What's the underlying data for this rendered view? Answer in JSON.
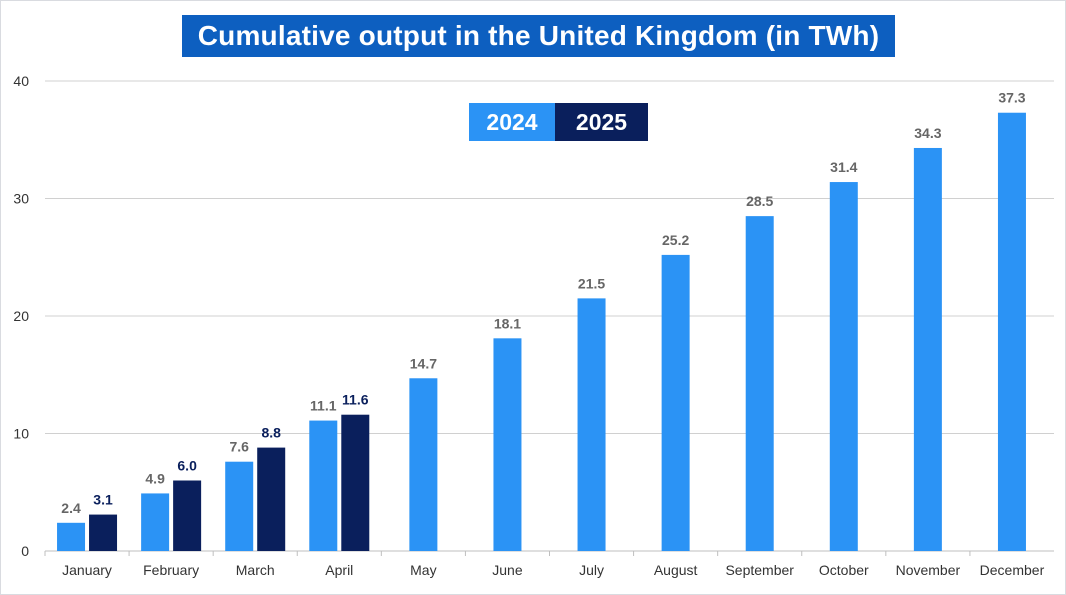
{
  "colors": {
    "series_2024": "#2b93f5",
    "series_2025": "#0a1f5c",
    "title_bg": "#0d5fc0",
    "label_2024": "#666666",
    "label_2025": "#0a1f5c",
    "grid": "#d0d0d0"
  },
  "chart_data": {
    "type": "bar",
    "title": "Cumulative output in the United Kingdom (in TWh)",
    "categories": [
      "January",
      "February",
      "March",
      "April",
      "May",
      "June",
      "July",
      "August",
      "September",
      "October",
      "November",
      "December"
    ],
    "series": [
      {
        "name": "2024",
        "values": [
          2.4,
          4.9,
          7.6,
          11.1,
          14.7,
          18.1,
          21.5,
          25.2,
          28.5,
          31.4,
          34.3,
          37.3
        ]
      },
      {
        "name": "2025",
        "values": [
          3.1,
          6.0,
          8.8,
          11.6,
          null,
          null,
          null,
          null,
          null,
          null,
          null,
          null
        ]
      }
    ],
    "ylim": [
      0,
      40
    ],
    "yticks": [
      0,
      10,
      20,
      30,
      40
    ],
    "xlabel": "",
    "ylabel": "",
    "grid": true,
    "legend": "top-center",
    "decimals": 1
  }
}
